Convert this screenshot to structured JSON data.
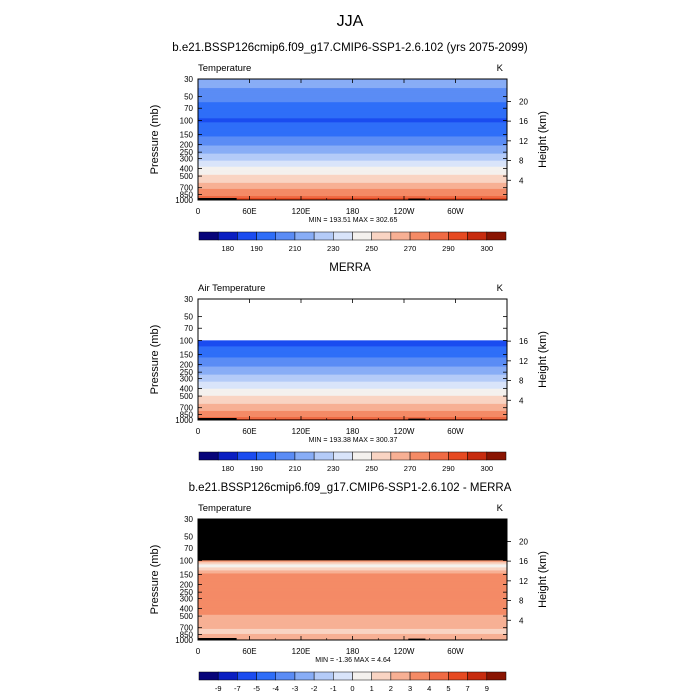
{
  "figure": {
    "title": "JJA"
  },
  "chart_data": [
    {
      "type": "heatmap",
      "title": "b.e21.BSSP126cmip6.f09_g17.CMIP6-SSP1-2.6.102 (yrs 2075-2099)",
      "left_label": "Temperature",
      "units": "K",
      "xlabel": "",
      "ylabel": "Pressure (mb)",
      "right_label": "Height (km)",
      "x_ticks": [
        "0",
        "60E",
        "120E",
        "180",
        "120W",
        "60W"
      ],
      "x_tick_lons": [
        0,
        60,
        120,
        180,
        240,
        300
      ],
      "xlim": [
        0,
        360
      ],
      "y_ticks": [
        "30",
        "50",
        "70",
        "100",
        "150",
        "200",
        "250",
        "300",
        "400",
        "500",
        "700",
        "850",
        "1000"
      ],
      "y_tick_values": [
        30,
        50,
        70,
        100,
        150,
        200,
        250,
        300,
        400,
        500,
        700,
        850,
        1000
      ],
      "ylim": [
        30,
        1000
      ],
      "height_ticks": [
        "20",
        "16",
        "12",
        "8",
        "4"
      ],
      "height_tick_values": [
        20,
        16,
        12,
        8,
        4
      ],
      "stats": "MIN = 193.51  MAX = 302.65",
      "min": 193.51,
      "max": 302.65,
      "profile": [
        {
          "p": 30,
          "v": 226
        },
        {
          "p": 50,
          "v": 214
        },
        {
          "p": 70,
          "v": 206
        },
        {
          "p": 100,
          "v": 199
        },
        {
          "p": 130,
          "v": 203
        },
        {
          "p": 150,
          "v": 208
        },
        {
          "p": 200,
          "v": 218
        },
        {
          "p": 250,
          "v": 228
        },
        {
          "p": 300,
          "v": 237
        },
        {
          "p": 400,
          "v": 252
        },
        {
          "p": 500,
          "v": 262
        },
        {
          "p": 600,
          "v": 270
        },
        {
          "p": 700,
          "v": 278
        },
        {
          "p": 850,
          "v": 287
        },
        {
          "p": 925,
          "v": 294
        },
        {
          "p": 1000,
          "v": 299
        }
      ],
      "colorbar": {
        "labels": [
          "180",
          "190",
          "210",
          "230",
          "250",
          "270",
          "290",
          "300"
        ],
        "colors": [
          "#07047a",
          "#0a1fc2",
          "#1b4cf0",
          "#2f6ef8",
          "#5b8cf5",
          "#88adf6",
          "#b4cbf8",
          "#d9e4fa",
          "#f4f1ee",
          "#f9d4c3",
          "#f7b094",
          "#f48b66",
          "#ef6a44",
          "#e64a22",
          "#c72b0e",
          "#8a1402"
        ],
        "levels": [
          170,
          180,
          190,
          200,
          210,
          220,
          230,
          240,
          250,
          260,
          270,
          280,
          290,
          295,
          300,
          305
        ]
      }
    },
    {
      "type": "heatmap",
      "title": "MERRA",
      "left_label": "Air Temperature",
      "units": "K",
      "xlabel": "",
      "ylabel": "Pressure (mb)",
      "right_label": "Height (km)",
      "x_ticks": [
        "0",
        "60E",
        "120E",
        "180",
        "120W",
        "60W"
      ],
      "x_tick_lons": [
        0,
        60,
        120,
        180,
        240,
        300
      ],
      "xlim": [
        0,
        360
      ],
      "y_ticks": [
        "30",
        "50",
        "70",
        "100",
        "150",
        "200",
        "250",
        "300",
        "400",
        "500",
        "700",
        "850",
        "1000"
      ],
      "y_tick_values": [
        30,
        50,
        70,
        100,
        150,
        200,
        250,
        300,
        400,
        500,
        700,
        850,
        1000
      ],
      "ylim": [
        30,
        1000
      ],
      "height_ticks": [
        "16",
        "12",
        "8",
        "4"
      ],
      "height_tick_values": [
        16,
        12,
        8,
        4
      ],
      "stats": "MIN = 193.38  MAX = 300.37",
      "min": 193.38,
      "max": 300.37,
      "data_top_p": 100,
      "profile": [
        {
          "p": 100,
          "v": 196
        },
        {
          "p": 130,
          "v": 202
        },
        {
          "p": 150,
          "v": 207
        },
        {
          "p": 200,
          "v": 217
        },
        {
          "p": 250,
          "v": 226
        },
        {
          "p": 300,
          "v": 235
        },
        {
          "p": 400,
          "v": 250
        },
        {
          "p": 500,
          "v": 260
        },
        {
          "p": 600,
          "v": 268
        },
        {
          "p": 700,
          "v": 276
        },
        {
          "p": 850,
          "v": 284
        },
        {
          "p": 925,
          "v": 291
        },
        {
          "p": 1000,
          "v": 296
        }
      ],
      "colorbar": {
        "labels": [
          "180",
          "190",
          "210",
          "230",
          "250",
          "270",
          "290",
          "300"
        ],
        "colors": [
          "#07047a",
          "#0a1fc2",
          "#1b4cf0",
          "#2f6ef8",
          "#5b8cf5",
          "#88adf6",
          "#b4cbf8",
          "#d9e4fa",
          "#f4f1ee",
          "#f9d4c3",
          "#f7b094",
          "#f48b66",
          "#ef6a44",
          "#e64a22",
          "#c72b0e",
          "#8a1402"
        ],
        "levels": [
          170,
          180,
          190,
          200,
          210,
          220,
          230,
          240,
          250,
          260,
          270,
          280,
          290,
          295,
          300,
          305
        ]
      }
    },
    {
      "type": "heatmap",
      "title": "b.e21.BSSP126cmip6.f09_g17.CMIP6-SSP1-2.6.102 - MERRA",
      "left_label": "Temperature",
      "units": "K",
      "xlabel": "",
      "ylabel": "Pressure (mb)",
      "right_label": "Height (km)",
      "x_ticks": [
        "0",
        "60E",
        "120E",
        "180",
        "120W",
        "60W"
      ],
      "x_tick_lons": [
        0,
        60,
        120,
        180,
        240,
        300
      ],
      "xlim": [
        0,
        360
      ],
      "y_ticks": [
        "30",
        "50",
        "70",
        "100",
        "150",
        "200",
        "250",
        "300",
        "400",
        "500",
        "700",
        "850",
        "1000"
      ],
      "y_tick_values": [
        30,
        50,
        70,
        100,
        150,
        200,
        250,
        300,
        400,
        500,
        700,
        850,
        1000
      ],
      "ylim": [
        30,
        1000
      ],
      "height_ticks": [
        "20",
        "16",
        "12",
        "8",
        "4"
      ],
      "height_tick_values": [
        20,
        16,
        12,
        8,
        4
      ],
      "stats": "MIN = -1.36  MAX =  4.64",
      "min": -1.36,
      "max": 4.64,
      "missing_above_p": 100,
      "profile": [
        {
          "p": 100,
          "v": 3.2
        },
        {
          "p": 115,
          "v": 0.2
        },
        {
          "p": 150,
          "v": 3.4
        },
        {
          "p": 200,
          "v": 3.9
        },
        {
          "p": 300,
          "v": 3.6
        },
        {
          "p": 400,
          "v": 3.4
        },
        {
          "p": 500,
          "v": 2.9
        },
        {
          "p": 600,
          "v": 2.4
        },
        {
          "p": 700,
          "v": 2.2
        },
        {
          "p": 800,
          "v": 1.6
        },
        {
          "p": 900,
          "v": 2.6
        },
        {
          "p": 1000,
          "v": 3.0
        }
      ],
      "colorbar": {
        "labels": [
          "-9",
          "-7",
          "-5",
          "-4",
          "-3",
          "-2",
          "-1",
          "0",
          "1",
          "2",
          "3",
          "4",
          "5",
          "7",
          "9"
        ],
        "colors": [
          "#07047a",
          "#0a1fc2",
          "#1b4cf0",
          "#2f6ef8",
          "#5b8cf5",
          "#88adf6",
          "#b4cbf8",
          "#d9e4fa",
          "#f4f1ee",
          "#f9d4c3",
          "#f7b094",
          "#f48b66",
          "#ef6a44",
          "#e64a22",
          "#c72b0e",
          "#8a1402"
        ],
        "levels": [
          -11,
          -9,
          -7,
          -5,
          -4,
          -3,
          -2,
          -1,
          0,
          1,
          2,
          3,
          4,
          5,
          7,
          9
        ]
      }
    }
  ]
}
